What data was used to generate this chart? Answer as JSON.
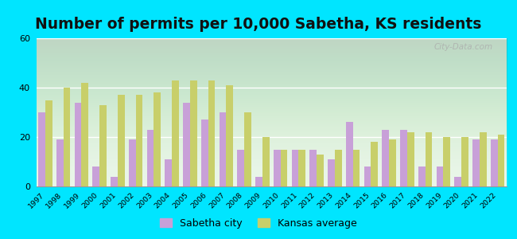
{
  "title": "Number of permits per 10,000 Sabetha, KS residents",
  "years": [
    1997,
    1998,
    1999,
    2000,
    2001,
    2002,
    2003,
    2004,
    2005,
    2006,
    2007,
    2008,
    2009,
    2010,
    2011,
    2012,
    2013,
    2014,
    2015,
    2016,
    2017,
    2018,
    2019,
    2020,
    2021,
    2022
  ],
  "sabetha": [
    30,
    19,
    34,
    8,
    4,
    19,
    23,
    11,
    34,
    27,
    30,
    15,
    4,
    15,
    15,
    15,
    11,
    26,
    8,
    23,
    23,
    8,
    8,
    4,
    19,
    19
  ],
  "kansas": [
    35,
    40,
    42,
    33,
    37,
    37,
    38,
    43,
    43,
    43,
    41,
    30,
    20,
    15,
    15,
    13,
    15,
    15,
    18,
    19,
    22,
    22,
    20,
    20,
    22,
    21
  ],
  "sabetha_color": "#c8a0d8",
  "kansas_color": "#c8cf6a",
  "bg_top_color": "#c8eec8",
  "bg_bottom_color": "#f0faf0",
  "outer_background": "#00e5ff",
  "ylim": [
    0,
    60
  ],
  "yticks": [
    0,
    20,
    40,
    60
  ],
  "bar_width": 0.38,
  "title_fontsize": 13.5,
  "legend_sabetha": "Sabetha city",
  "legend_kansas": "Kansas average",
  "watermark": "City-Data.com"
}
